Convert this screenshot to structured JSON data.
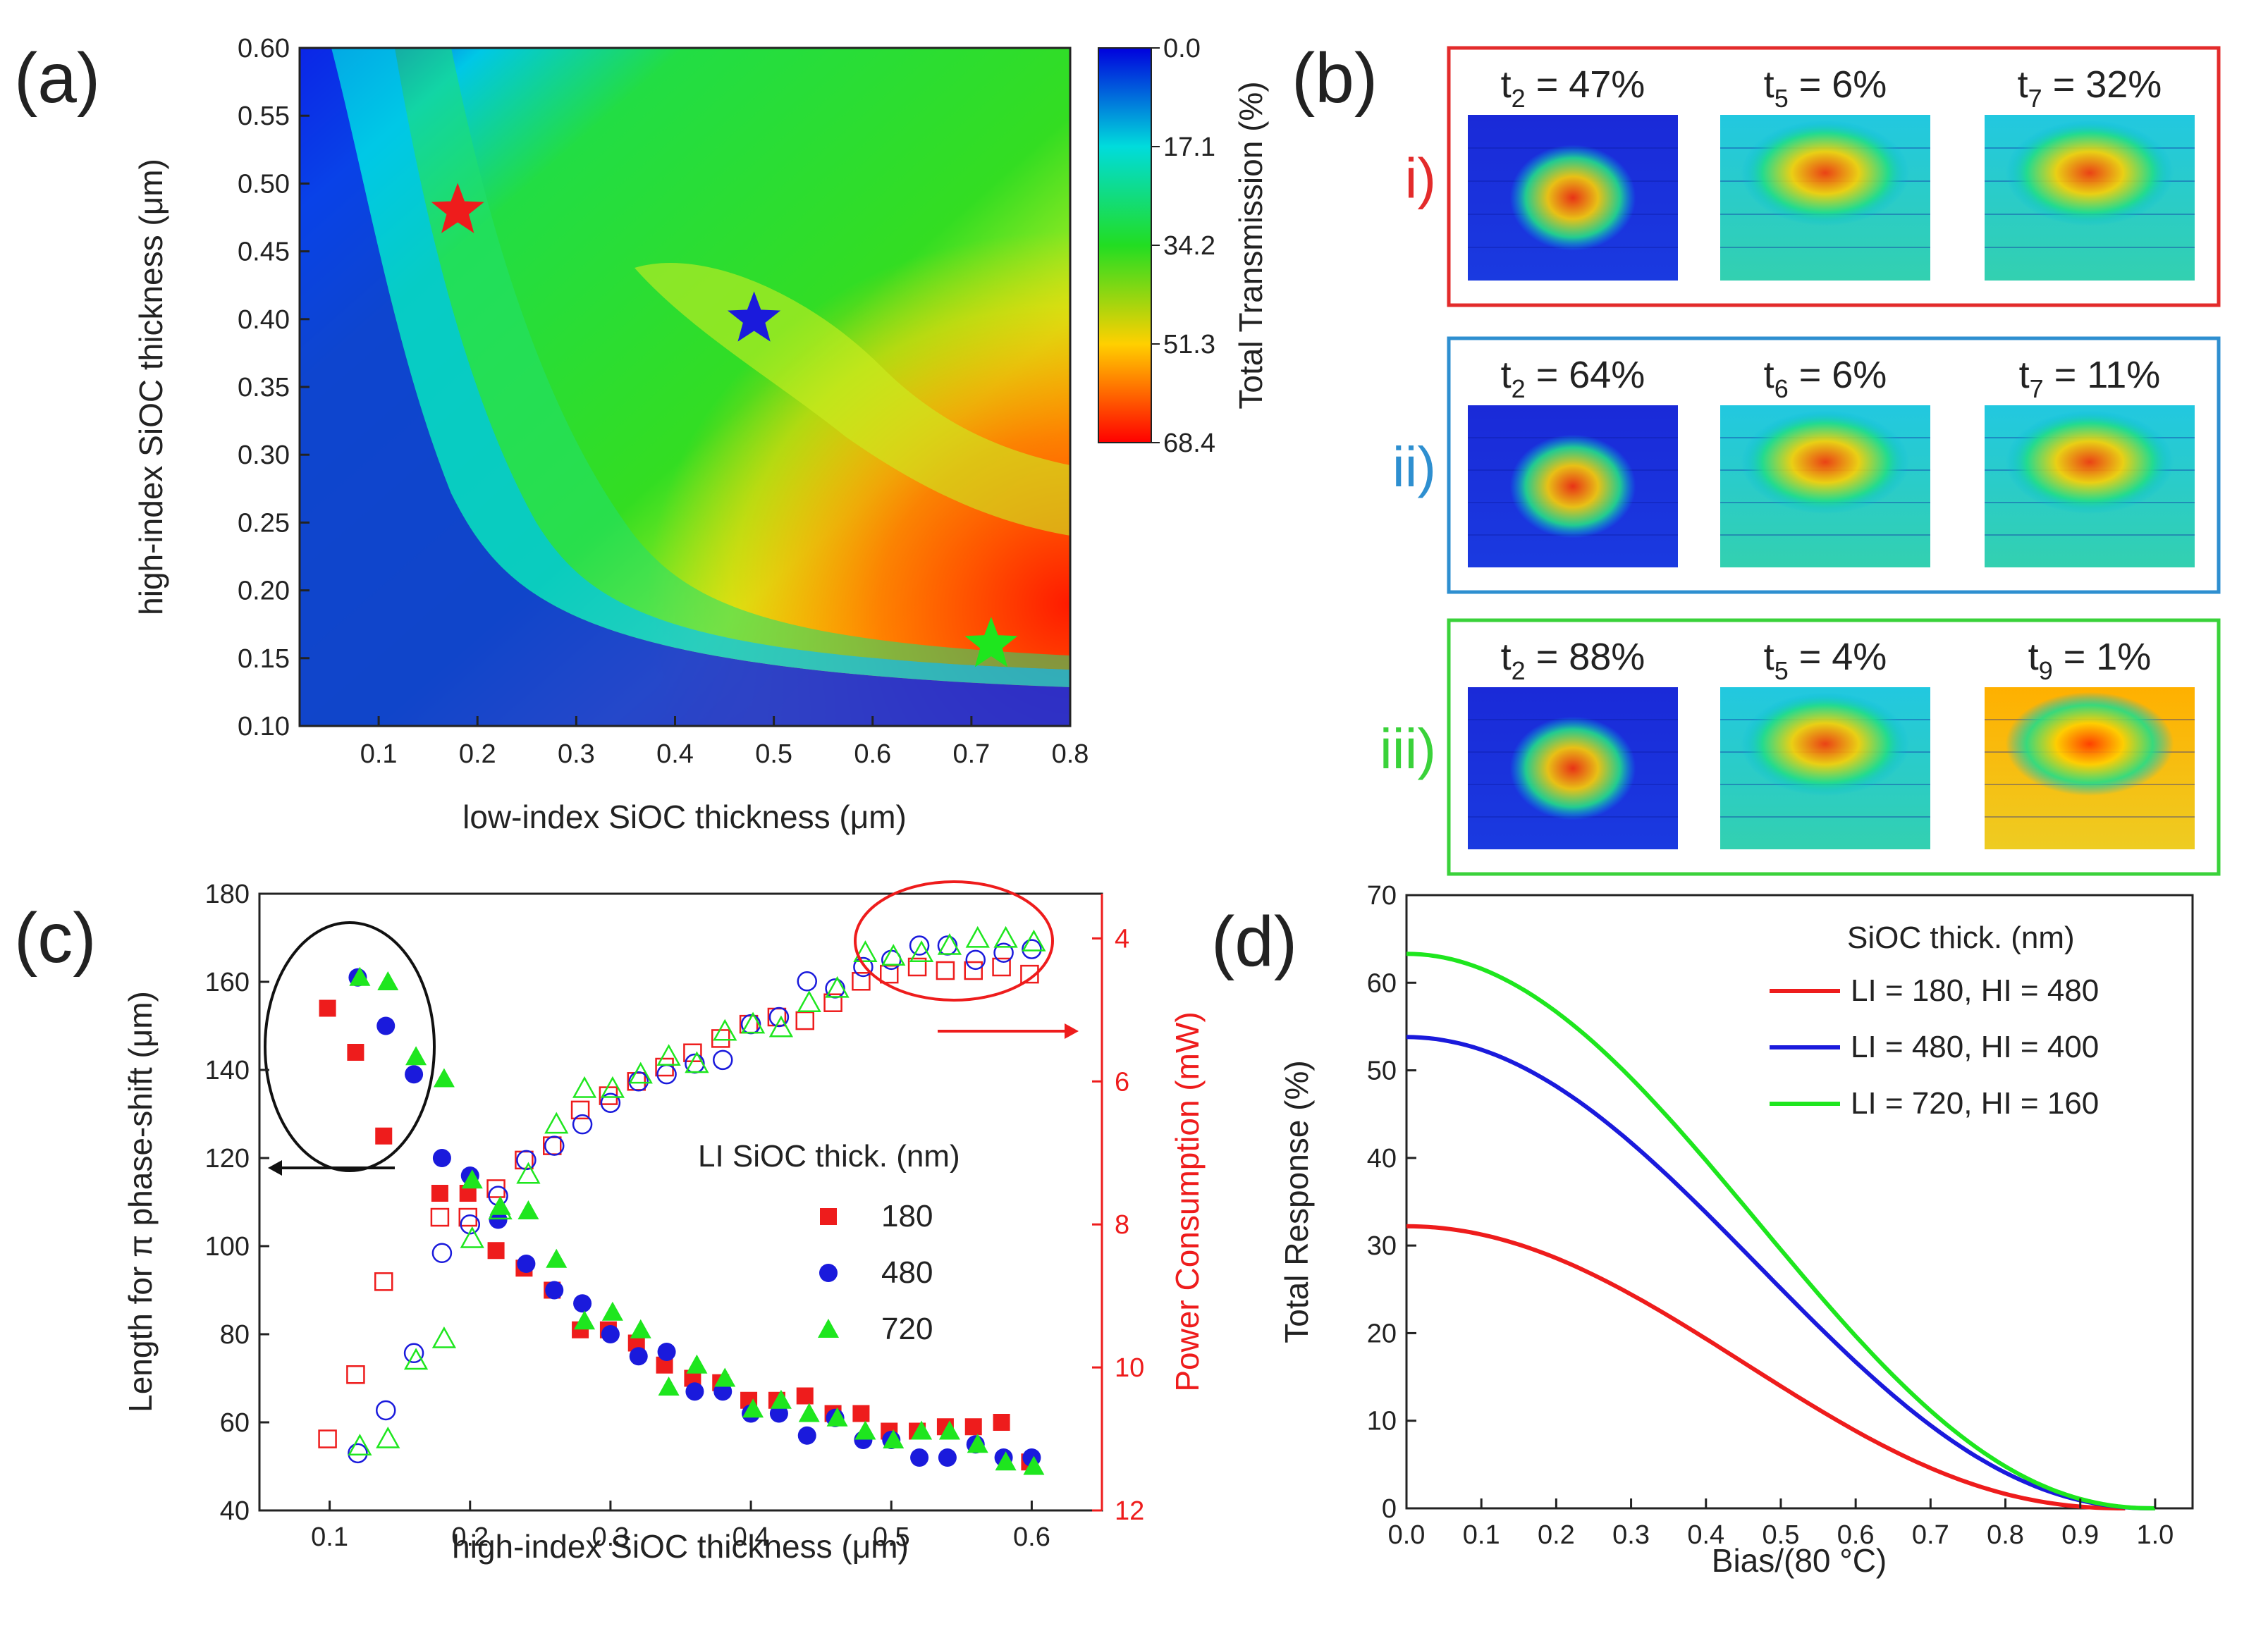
{
  "panels": {
    "a": "(a)",
    "b": "(b)",
    "c": "(c)",
    "d": "(d)"
  },
  "colors": {
    "red": "#ee1c1c",
    "blue": "#1a1adc",
    "green": "#1ee61e",
    "box_i": "#e32b2b",
    "box_ii": "#2e8fd0",
    "box_iii": "#3ad23a"
  },
  "chart_data": [
    {
      "id": "a",
      "type": "heatmap",
      "xlabel": "low-index SiOC thickness (μm)",
      "ylabel": "high-index SiOC thickness (μm)",
      "xlim": [
        0.02,
        0.8
      ],
      "ylim": [
        0.1,
        0.6
      ],
      "x_ticks": [
        "0.1",
        "0.2",
        "0.3",
        "0.4",
        "0.5",
        "0.6",
        "0.7",
        "0.8"
      ],
      "y_ticks": [
        "0.10",
        "0.15",
        "0.20",
        "0.25",
        "0.30",
        "0.35",
        "0.40",
        "0.45",
        "0.50",
        "0.55",
        "0.60"
      ],
      "colorbar": {
        "label": "Total Transmission (%)",
        "ticks": [
          "0.0",
          "17.1",
          "34.2",
          "51.3",
          "68.4"
        ],
        "range": [
          0.0,
          68.4
        ]
      },
      "markers": [
        {
          "name": "red-star",
          "x": 0.18,
          "y": 0.48,
          "color": "#ee1c1c"
        },
        {
          "name": "blue-star",
          "x": 0.48,
          "y": 0.4,
          "color": "#1a1adc"
        },
        {
          "name": "green-star",
          "x": 0.72,
          "y": 0.16,
          "color": "#1ee61e"
        }
      ]
    },
    {
      "id": "c",
      "type": "scatter",
      "xlabel": "high-index SiOC thickness (μm)",
      "ylabel_left": "Length for π phase-shift (μm)",
      "ylabel_right": "Power Consumption (mW)",
      "xlim": [
        0.05,
        0.65
      ],
      "ylim_left": [
        40,
        180
      ],
      "ylim_right": [
        12,
        3.375
      ],
      "x_ticks": [
        "0.1",
        "0.2",
        "0.3",
        "0.4",
        "0.5",
        "0.6"
      ],
      "y_ticks_left": [
        "40",
        "60",
        "80",
        "100",
        "120",
        "140",
        "160",
        "180"
      ],
      "y_ticks_right": [
        "4",
        "6",
        "8",
        "10",
        "12"
      ],
      "legend_title": "LI SiOC thick. (nm)",
      "series": [
        {
          "name": "180",
          "color": "#ee1c1c",
          "marker": "square",
          "x": [
            0.1,
            0.12,
            0.14,
            0.18,
            0.2,
            0.22,
            0.24,
            0.26,
            0.28,
            0.3,
            0.32,
            0.34,
            0.36,
            0.38,
            0.4,
            0.42,
            0.44,
            0.46,
            0.48,
            0.5,
            0.52,
            0.54,
            0.56,
            0.58,
            0.6
          ],
          "length": [
            154,
            144,
            125,
            112,
            112,
            99,
            95,
            90,
            81,
            81,
            78,
            73,
            70,
            69,
            65,
            65,
            66,
            62,
            62,
            58,
            58,
            59,
            59,
            60,
            51
          ],
          "power": [
            11.0,
            10.1,
            8.8,
            7.9,
            7.9,
            7.5,
            7.1,
            6.9,
            6.4,
            6.2,
            6.0,
            5.8,
            5.6,
            5.4,
            5.2,
            5.1,
            5.15,
            4.9,
            4.6,
            4.5,
            4.4,
            4.45,
            4.45,
            4.4,
            4.5
          ]
        },
        {
          "name": "480",
          "color": "#1a1adc",
          "marker": "circle",
          "x": [
            0.12,
            0.14,
            0.16,
            0.18,
            0.2,
            0.22,
            0.24,
            0.26,
            0.28,
            0.3,
            0.32,
            0.34,
            0.36,
            0.38,
            0.4,
            0.42,
            0.44,
            0.46,
            0.48,
            0.5,
            0.52,
            0.54,
            0.56,
            0.58,
            0.6
          ],
          "length": [
            161,
            150,
            139,
            120,
            116,
            106,
            96,
            90,
            87,
            80,
            75,
            76,
            67,
            67,
            62,
            62,
            57,
            61,
            56,
            56,
            52,
            52,
            55,
            52,
            52
          ],
          "power": [
            11.2,
            10.6,
            9.8,
            8.4,
            8.0,
            7.6,
            7.1,
            6.9,
            6.6,
            6.3,
            6.0,
            5.9,
            5.75,
            5.7,
            5.2,
            5.1,
            4.6,
            4.7,
            4.4,
            4.3,
            4.1,
            4.1,
            4.3,
            4.2,
            4.15
          ]
        },
        {
          "name": "720",
          "color": "#1ee61e",
          "marker": "triangle",
          "x": [
            0.12,
            0.14,
            0.16,
            0.18,
            0.2,
            0.22,
            0.24,
            0.26,
            0.28,
            0.3,
            0.32,
            0.34,
            0.36,
            0.38,
            0.4,
            0.42,
            0.44,
            0.46,
            0.48,
            0.5,
            0.52,
            0.54,
            0.56,
            0.58,
            0.6
          ],
          "length": [
            161,
            160,
            143,
            138,
            115,
            109,
            108,
            97,
            83,
            85,
            81,
            68,
            73,
            70,
            63,
            65,
            62,
            61,
            58,
            56,
            58,
            58,
            55,
            51,
            50
          ],
          "power": [
            11.1,
            11.0,
            9.9,
            9.6,
            8.2,
            7.8,
            7.3,
            6.6,
            6.1,
            6.1,
            5.9,
            5.65,
            5.75,
            5.3,
            5.2,
            5.25,
            4.9,
            4.7,
            4.2,
            4.25,
            4.2,
            4.1,
            4.0,
            4.0,
            4.05
          ]
        }
      ],
      "annotations": [
        "black ellipse with left arrow (left axis)",
        "red ellipse with right arrow (right axis)"
      ]
    },
    {
      "id": "d",
      "type": "line",
      "xlabel": "Bias/(80 °C)",
      "ylabel": "Total Response (%)",
      "xlim": [
        0.0,
        1.05
      ],
      "ylim": [
        0,
        70
      ],
      "x_ticks": [
        "0.0",
        "0.1",
        "0.2",
        "0.3",
        "0.4",
        "0.5",
        "0.6",
        "0.7",
        "0.8",
        "0.9",
        "1.0"
      ],
      "y_ticks": [
        "0",
        "10",
        "20",
        "30",
        "40",
        "50",
        "60",
        "70"
      ],
      "legend_title": "SiOC thick. (nm)",
      "series": [
        {
          "name": "LI = 180, HI = 480",
          "color": "#ee1c1c",
          "peak": 32.2,
          "end": 0.96
        },
        {
          "name": "LI = 480, HI = 400",
          "color": "#1a1adc",
          "peak": 53.8,
          "end": 1.0
        },
        {
          "name": "LI = 720, HI = 160",
          "color": "#1ee61e",
          "peak": 63.3,
          "end": 1.0
        }
      ]
    }
  ],
  "panel_b": {
    "rows": [
      {
        "label": "i)",
        "color": "#e32b2b",
        "maps": [
          {
            "sym": "t",
            "sub": "2",
            "val": " = 47%"
          },
          {
            "sym": "t",
            "sub": "5",
            "val": " = 6%"
          },
          {
            "sym": "t",
            "sub": "7",
            "val": " = 32%"
          }
        ]
      },
      {
        "label": "ii)",
        "color": "#2e8fd0",
        "maps": [
          {
            "sym": "t",
            "sub": "2",
            "val": " = 64%"
          },
          {
            "sym": "t",
            "sub": "6",
            "val": " = 6%"
          },
          {
            "sym": "t",
            "sub": "7",
            "val": " = 11%"
          }
        ]
      },
      {
        "label": "iii)",
        "color": "#3ad23a",
        "maps": [
          {
            "sym": "t",
            "sub": "2",
            "val": " = 88%"
          },
          {
            "sym": "t",
            "sub": "5",
            "val": " = 4%"
          },
          {
            "sym": "t",
            "sub": "9",
            "val": " = 1%"
          }
        ]
      }
    ]
  }
}
